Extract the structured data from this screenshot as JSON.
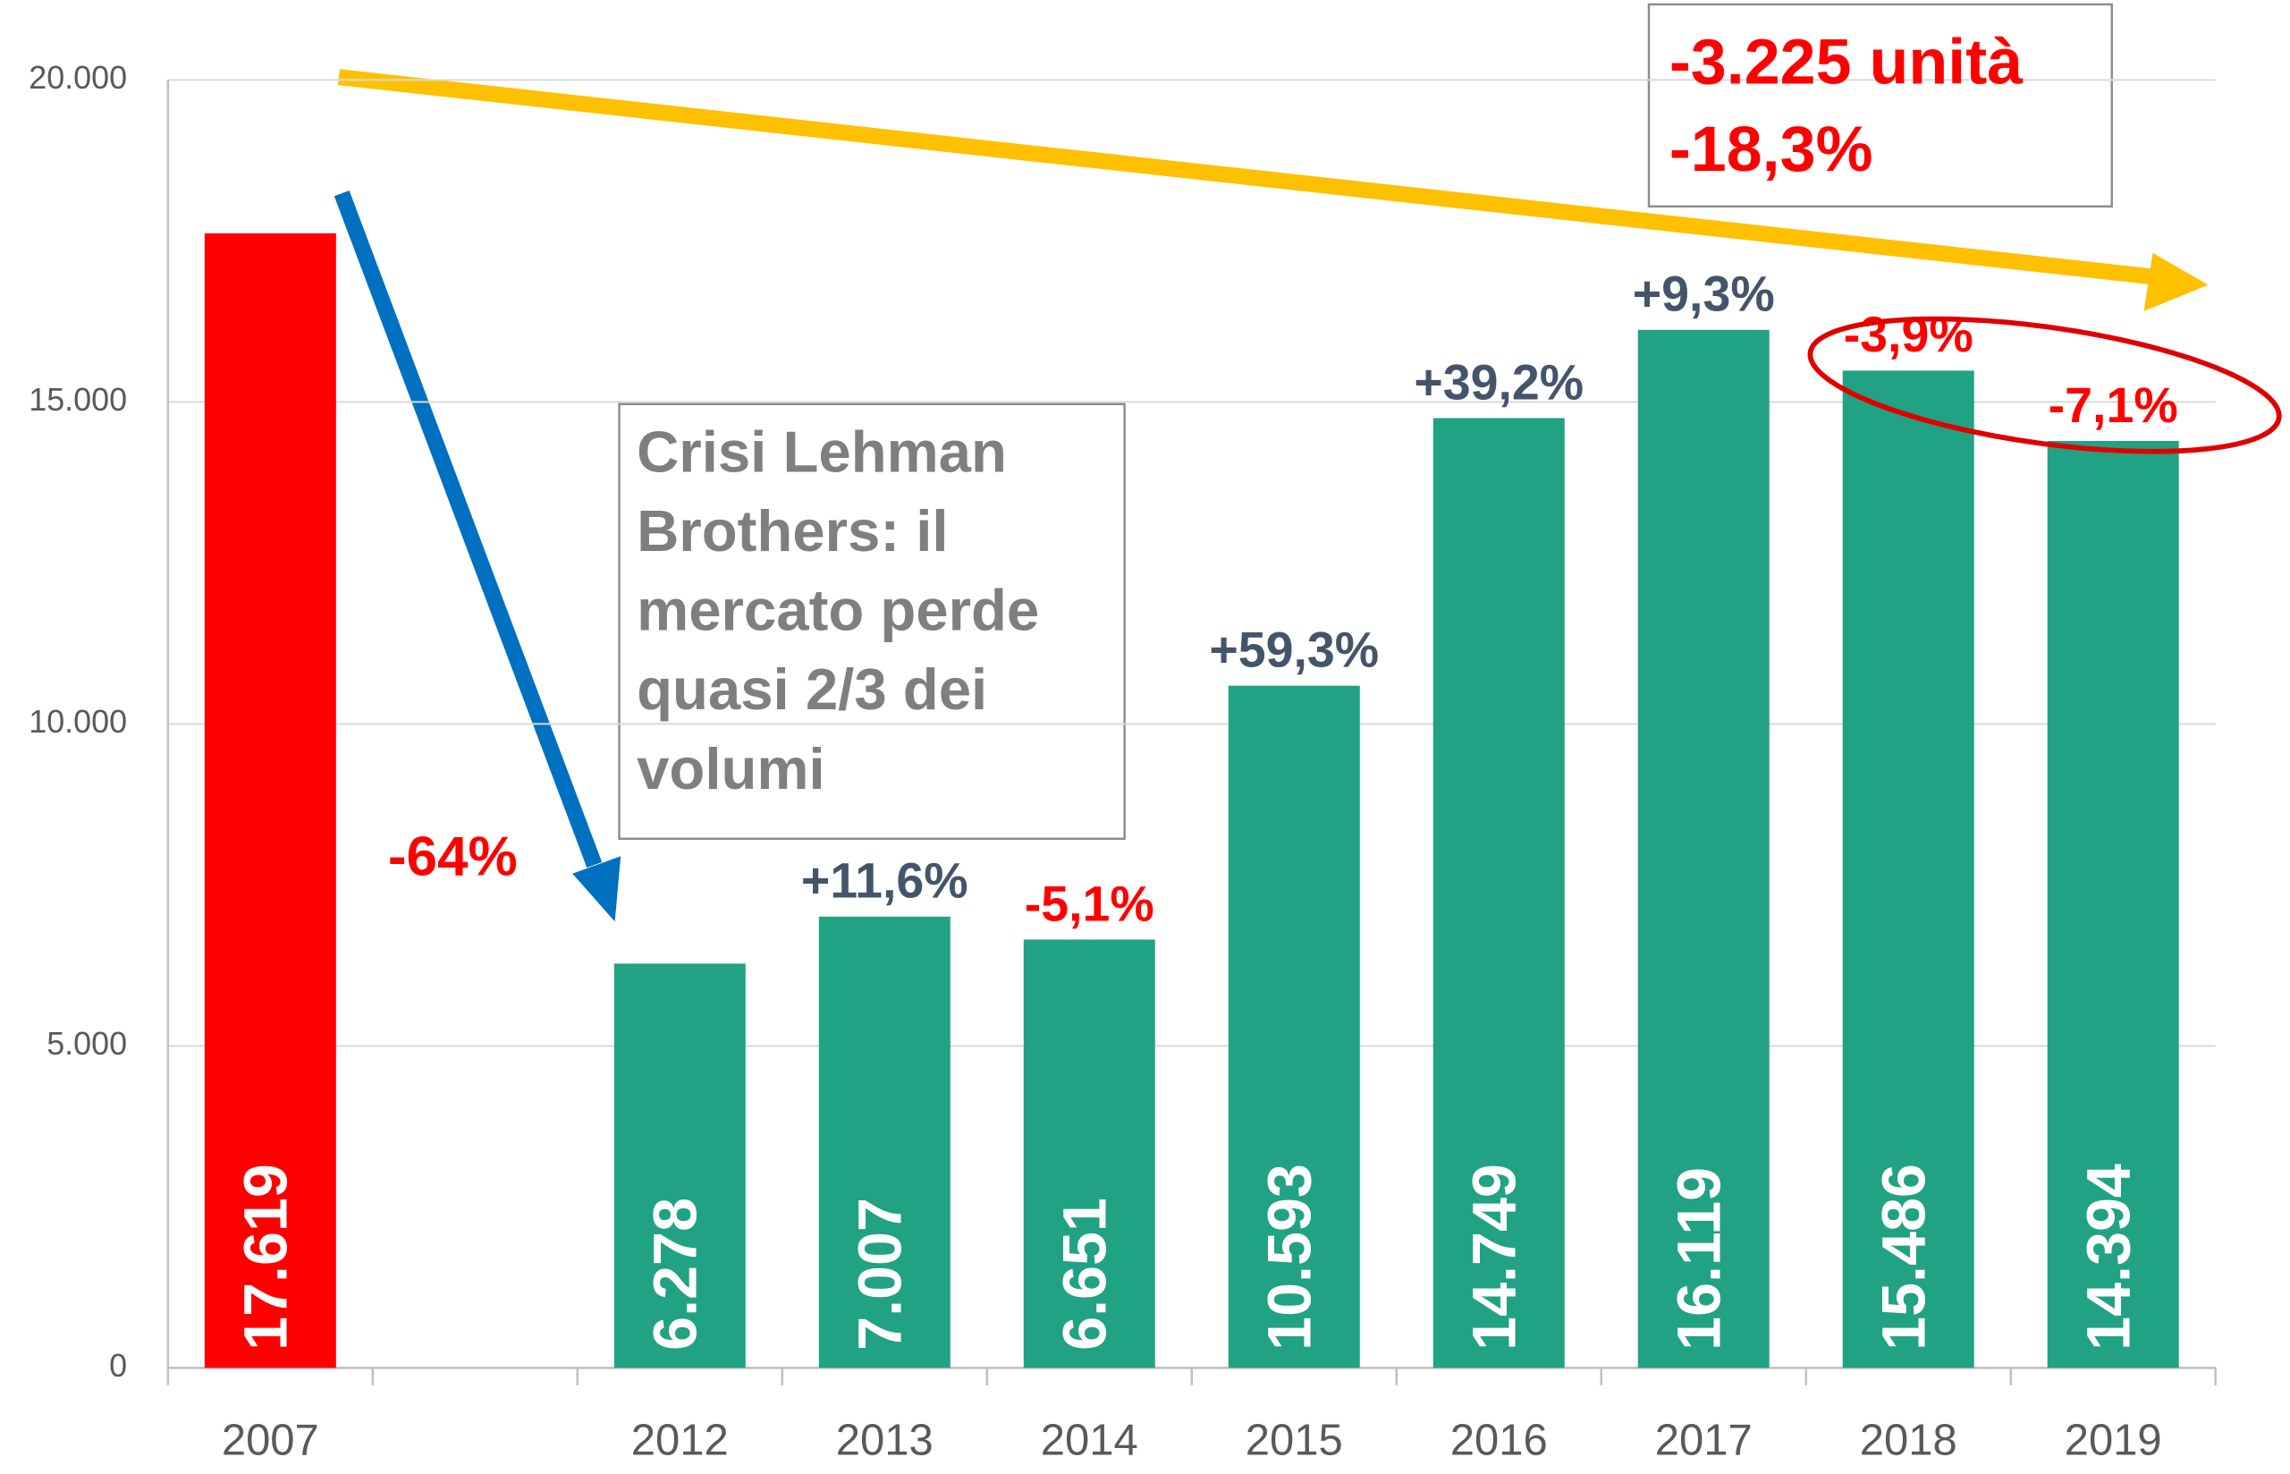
{
  "chart_data": {
    "type": "bar",
    "categories": [
      "2007",
      null,
      "2012",
      "2013",
      "2014",
      "2015",
      "2016",
      "2017",
      "2018",
      "2019"
    ],
    "values": [
      17619,
      null,
      6278,
      7007,
      6651,
      10593,
      14749,
      16119,
      15486,
      14394
    ],
    "value_labels": [
      "17.619",
      null,
      "6.278",
      "7.007",
      "6.651",
      "10.593",
      "14.749",
      "16.119",
      "15.486",
      "14.394"
    ],
    "colors": [
      "#ff0000",
      null,
      "#21a284",
      "#21a284",
      "#21a284",
      "#21a284",
      "#21a284",
      "#21a284",
      "#21a284",
      "#21a284"
    ],
    "change_labels": [
      null,
      null,
      null,
      "+11,6%",
      "-5,1%",
      "+59,3%",
      "+39,2%",
      "+9,3%",
      "-3,9%",
      "-7,1%"
    ],
    "change_colors": [
      null,
      null,
      null,
      "#44546a",
      "#ff0000",
      "#44546a",
      "#44546a",
      "#44546a",
      "#ff0000",
      "#ff0000"
    ],
    "ylim": [
      0,
      20000
    ],
    "yticks": [
      0,
      {
        "value": 5000,
        "label": "5.000"
      },
      {
        "value": 10000,
        "label": "10.000"
      },
      {
        "value": 15000,
        "label": "15.000"
      },
      {
        "value": 20000,
        "label": "20.000"
      }
    ],
    "grid": true,
    "annotations": {
      "crisis_drop": "-64%",
      "crisis_box": [
        "Crisi Lehman",
        "Brothers: il",
        "mercato perde",
        "quasi 2/3 dei",
        "volumi"
      ],
      "total_box": [
        "-3.225 unità",
        "-18,3%"
      ]
    }
  }
}
